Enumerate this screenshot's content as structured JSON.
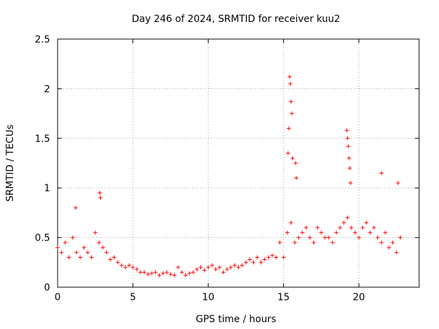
{
  "chart_data": {
    "type": "scatter",
    "title": "Day 246 of 2024, SRMTID for receiver kuu2",
    "xlabel": "GPS time / hours",
    "ylabel": "SRMTID / TECUs",
    "xlim": [
      0,
      24
    ],
    "ylim": [
      0,
      2.5
    ],
    "xticks": [
      0,
      5,
      10,
      15,
      20
    ],
    "xtick_labels": [
      "0",
      "5",
      "10",
      "15",
      "20"
    ],
    "yticks": [
      0,
      0.5,
      1,
      1.5,
      2,
      2.5
    ],
    "ytick_labels": [
      "0",
      "0.5",
      "1",
      "1.5",
      "2",
      "2.5"
    ],
    "grid": true,
    "marker": "+",
    "series": [
      {
        "name": "SRMTID",
        "color": "#ff0000",
        "x": [
          0,
          0.25,
          0.5,
          0.75,
          1,
          1.25,
          1.5,
          1.75,
          2,
          2.25,
          2.5,
          2.75,
          3,
          3.25,
          3.5,
          3.75,
          4,
          4.25,
          4.5,
          4.75,
          5,
          5.25,
          5.5,
          5.75,
          6,
          6.25,
          6.5,
          6.75,
          7,
          7.25,
          7.5,
          7.75,
          8,
          8.25,
          8.5,
          8.75,
          9,
          9.25,
          9.5,
          9.75,
          10,
          10.25,
          10.5,
          10.75,
          11,
          11.25,
          11.5,
          11.75,
          12,
          12.25,
          12.5,
          12.75,
          13,
          13.25,
          13.5,
          13.75,
          14,
          14.25,
          14.5,
          14.75,
          15,
          15.25,
          15.5,
          15.75,
          16,
          16.25,
          16.5,
          16.75,
          17,
          17.25,
          17.5,
          17.75,
          18,
          18.25,
          18.5,
          18.75,
          19,
          19.25,
          19.5,
          19.75,
          20,
          20.25,
          20.5,
          20.75,
          21,
          21.25,
          21.5,
          21.75,
          22,
          22.25,
          22.5,
          22.75,
          1.2,
          2.8,
          2.85,
          15.3,
          15.35,
          15.4,
          15.45,
          15.5,
          15.55,
          15.6,
          15.8,
          15.85,
          19.2,
          19.25,
          19.3,
          19.35,
          19.4,
          19.45,
          21.5,
          22.6
        ],
        "y": [
          0.4,
          0.35,
          0.45,
          0.3,
          0.5,
          0.35,
          0.3,
          0.4,
          0.35,
          0.3,
          0.55,
          0.45,
          0.4,
          0.35,
          0.28,
          0.3,
          0.25,
          0.22,
          0.2,
          0.22,
          0.2,
          0.18,
          0.15,
          0.15,
          0.13,
          0.14,
          0.15,
          0.12,
          0.14,
          0.15,
          0.13,
          0.12,
          0.2,
          0.15,
          0.12,
          0.14,
          0.15,
          0.18,
          0.2,
          0.17,
          0.2,
          0.22,
          0.18,
          0.2,
          0.15,
          0.18,
          0.2,
          0.22,
          0.2,
          0.22,
          0.25,
          0.28,
          0.25,
          0.3,
          0.25,
          0.28,
          0.3,
          0.32,
          0.3,
          0.45,
          0.3,
          0.55,
          0.65,
          0.45,
          0.5,
          0.55,
          0.6,
          0.5,
          0.45,
          0.6,
          0.55,
          0.5,
          0.5,
          0.45,
          0.55,
          0.6,
          0.65,
          0.7,
          0.6,
          0.55,
          0.5,
          0.6,
          0.65,
          0.55,
          0.6,
          0.5,
          0.45,
          0.55,
          0.4,
          0.45,
          0.35,
          0.5,
          0.8,
          0.95,
          0.9,
          1.35,
          1.6,
          2.12,
          2.05,
          1.87,
          1.75,
          1.3,
          1.25,
          1.1,
          1.58,
          1.5,
          1.42,
          1.3,
          1.2,
          1.05,
          1.15,
          1.05
        ]
      }
    ]
  }
}
